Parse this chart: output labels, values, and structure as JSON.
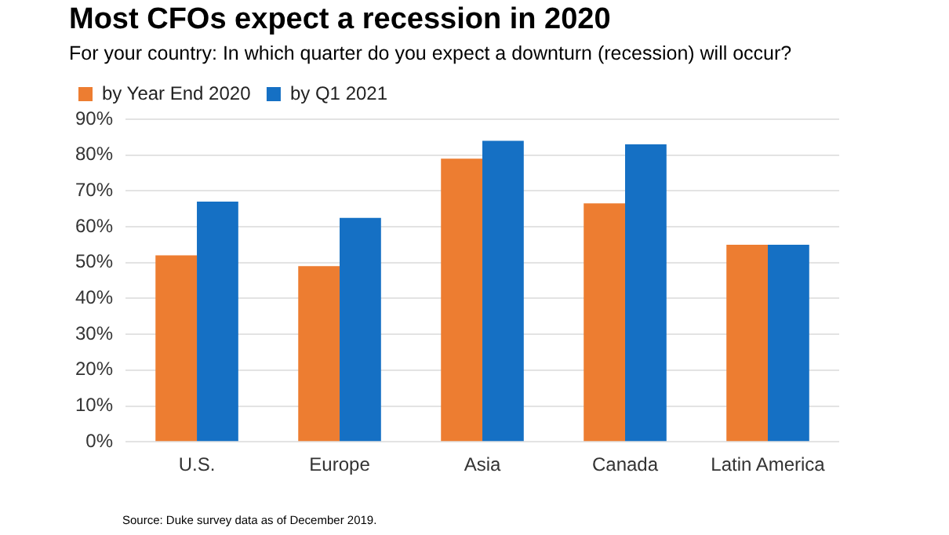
{
  "chart_data": {
    "type": "bar",
    "title": "Most CFOs expect a recession in 2020",
    "subtitle": "For your country: In which quarter do you expect a downturn (recession) will occur?",
    "categories": [
      "U.S.",
      "Europe",
      "Asia",
      "Canada",
      "Latin America"
    ],
    "series": [
      {
        "name": "by Year End 2020",
        "color": "#ed7d31",
        "values": [
          52,
          49,
          79,
          66.5,
          55
        ]
      },
      {
        "name": "by Q1 2021",
        "color": "#1570c4",
        "values": [
          67,
          62.5,
          84,
          83,
          55
        ]
      }
    ],
    "ylim": [
      0,
      90
    ],
    "yticks": [
      {
        "value": 0,
        "label": "0%"
      },
      {
        "value": 10,
        "label": "10%"
      },
      {
        "value": 20,
        "label": "20%"
      },
      {
        "value": 30,
        "label": "30%"
      },
      {
        "value": 40,
        "label": "40%"
      },
      {
        "value": 50,
        "label": "50%"
      },
      {
        "value": 60,
        "label": "60%"
      },
      {
        "value": 70,
        "label": "70%"
      },
      {
        "value": 80,
        "label": "80%"
      },
      {
        "value": 90,
        "label": "90%"
      }
    ],
    "grid": "y",
    "legend": "top left",
    "annotations": [
      "Source: Duke survey data as of December 2019."
    ]
  }
}
